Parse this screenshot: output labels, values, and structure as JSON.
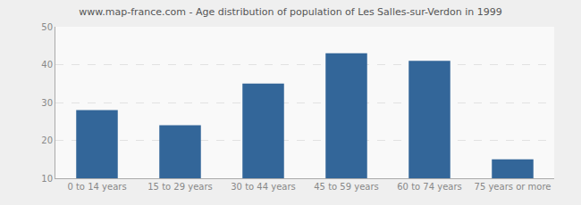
{
  "chart_data": {
    "type": "bar",
    "title": "www.map-france.com - Age distribution of population of Les Salles-sur-Verdon in 1999",
    "categories": [
      "0 to 14 years",
      "15 to 29 years",
      "30 to 44 years",
      "45 to 59 years",
      "60 to 74 years",
      "75 years or more"
    ],
    "values": [
      28,
      24,
      35,
      43,
      41,
      15
    ],
    "color": "#336699",
    "ylim": [
      10,
      50
    ],
    "yticks": [
      10,
      20,
      30,
      40,
      50
    ],
    "grid": true
  }
}
